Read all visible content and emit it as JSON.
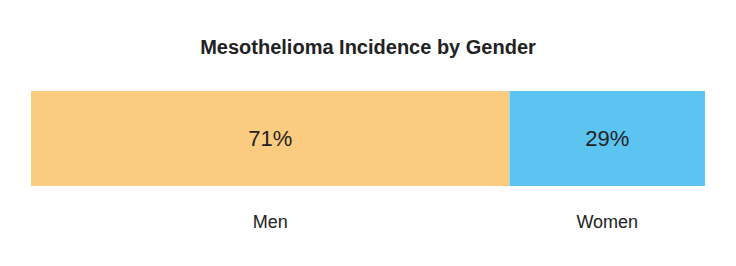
{
  "chart_data": {
    "type": "bar",
    "title": "Mesothelioma Incidence by Gender",
    "orientation": "horizontal",
    "stacked": true,
    "data_labels": true,
    "tick_labels": false,
    "categories": [
      null
    ],
    "xlim": [
      0,
      100
    ],
    "series": [
      {
        "name": "Men",
        "color": "#fbcb80",
        "values": [
          71
        ],
        "value_labels": [
          "71%"
        ]
      },
      {
        "name": "Women",
        "color": "#5bc4f0",
        "values": [
          29
        ],
        "value_labels": [
          "29%"
        ]
      }
    ]
  }
}
